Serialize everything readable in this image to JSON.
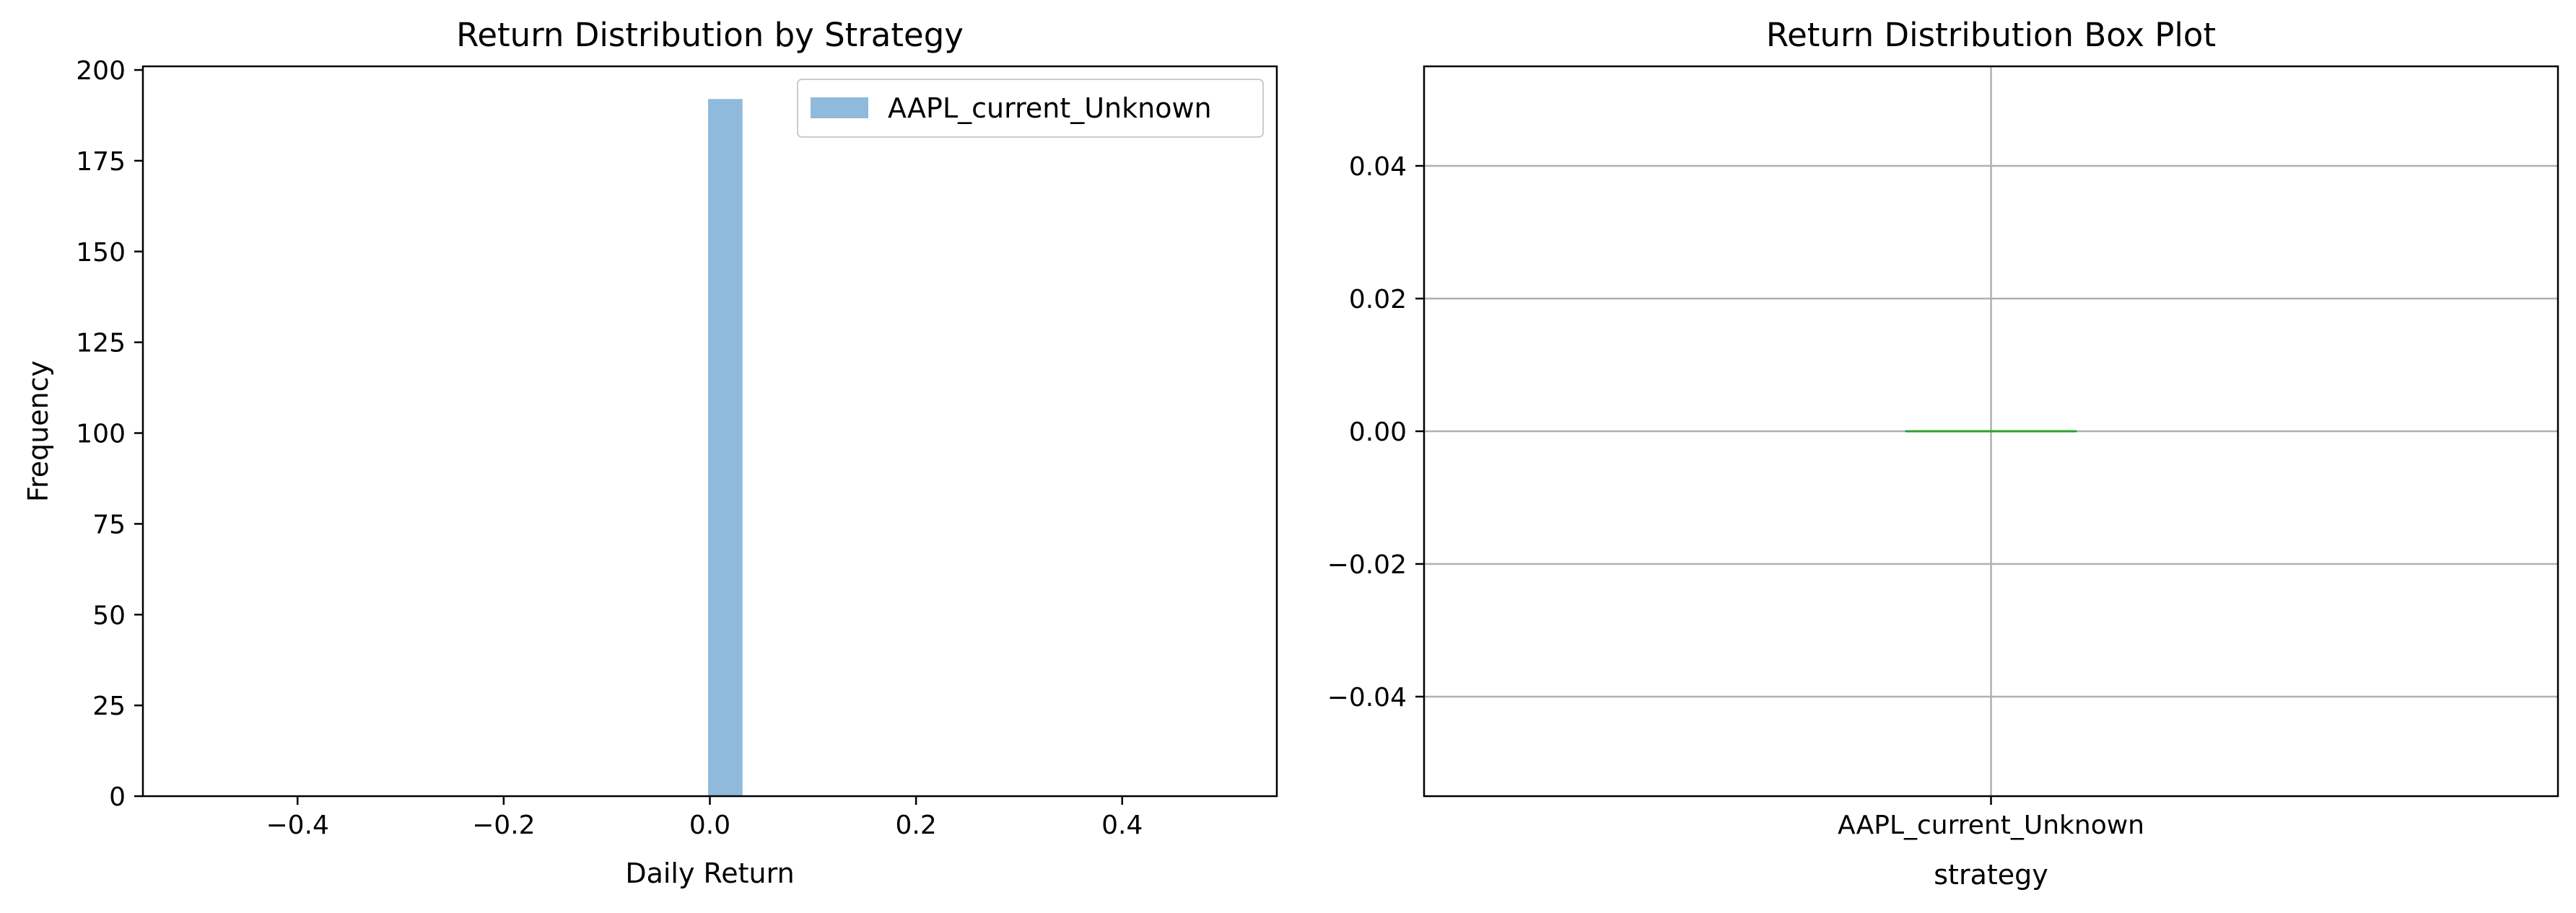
{
  "chart_data": [
    {
      "type": "bar",
      "title": "Return Distribution by Strategy",
      "xlabel": "Daily Return",
      "ylabel": "Frequency",
      "xlim": [
        -0.55,
        0.55
      ],
      "ylim": [
        0,
        201
      ],
      "xticks": [
        -0.4,
        -0.2,
        0.0,
        0.2,
        0.4
      ],
      "xtick_labels": [
        "−0.4",
        "−0.2",
        "0.0",
        "0.2",
        "0.4"
      ],
      "yticks": [
        0,
        25,
        50,
        75,
        100,
        125,
        150,
        175,
        200
      ],
      "ytick_labels": [
        "0",
        "25",
        "50",
        "75",
        "100",
        "125",
        "150",
        "175",
        "200"
      ],
      "grid": false,
      "legend_position": "top-right",
      "series": [
        {
          "name": "AAPL_current_Unknown",
          "color": "#8fbadb",
          "bins": [
            {
              "x0": -0.0017,
              "x1": 0.0317,
              "count": 192
            }
          ]
        }
      ]
    },
    {
      "type": "box",
      "title": "Return Distribution Box Plot",
      "xlabel": "strategy",
      "ylabel": "",
      "ylim": [
        -0.055,
        0.055
      ],
      "yticks": [
        -0.04,
        -0.02,
        0.0,
        0.02,
        0.04
      ],
      "ytick_labels": [
        "−0.04",
        "−0.02",
        "0.00",
        "0.02",
        "0.04"
      ],
      "categories": [
        "AAPL_current_Unknown"
      ],
      "grid": true,
      "boxes": [
        {
          "category": "AAPL_current_Unknown",
          "min": 0.0,
          "q1": 0.0,
          "median": 0.0,
          "q3": 0.0,
          "max": 0.0,
          "median_color": "#2ca02c"
        }
      ]
    }
  ]
}
